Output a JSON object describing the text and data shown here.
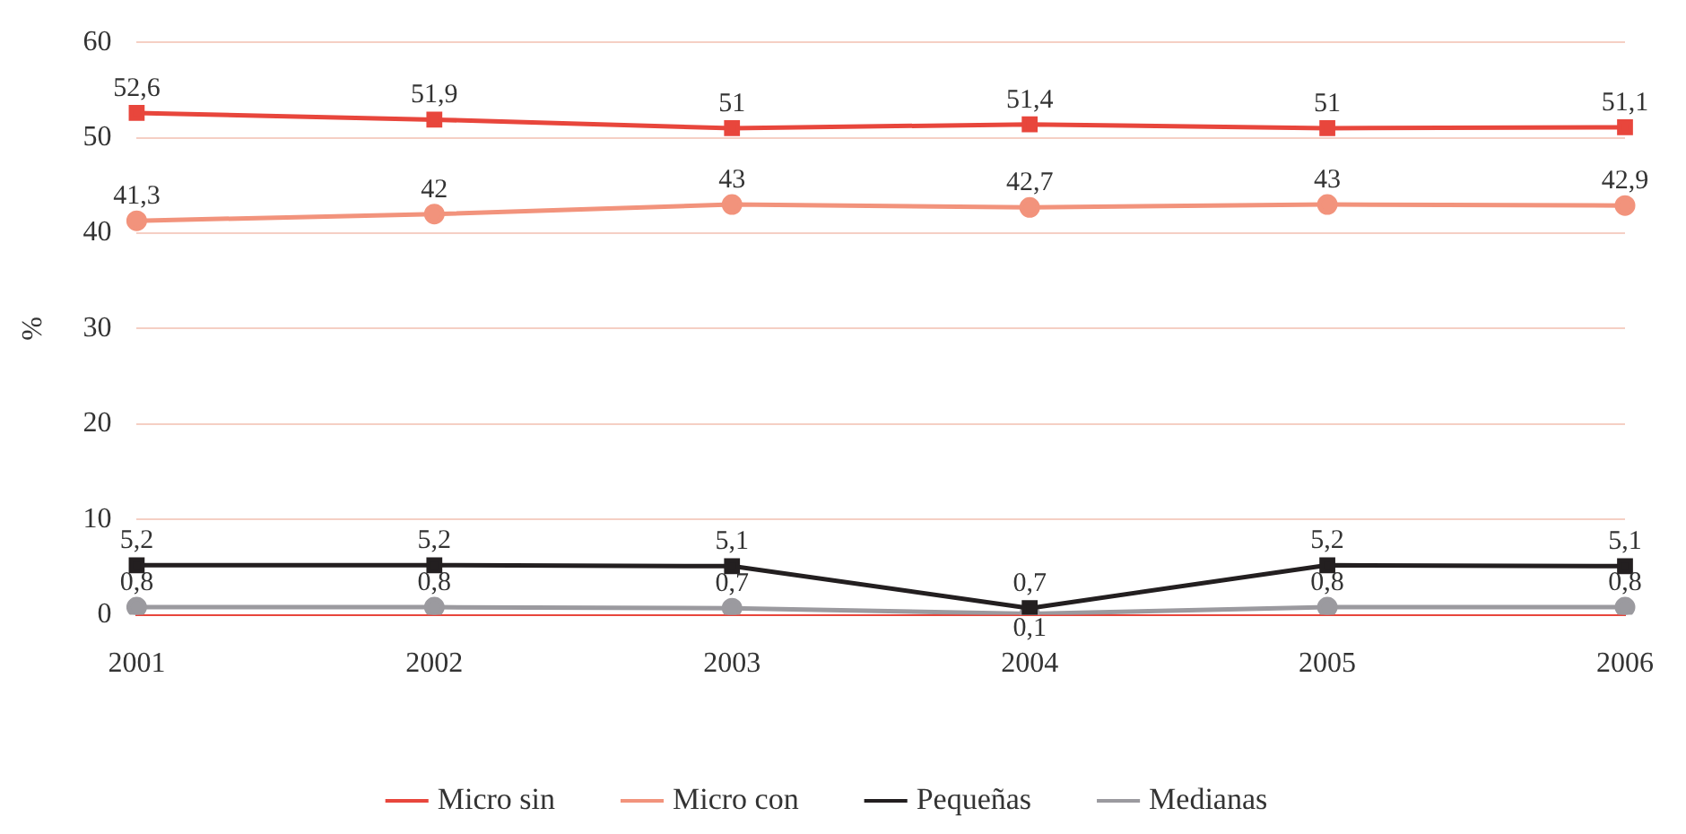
{
  "chart_data": {
    "type": "line",
    "ylabel": "%",
    "categories": [
      "2001",
      "2002",
      "2003",
      "2004",
      "2005",
      "2006"
    ],
    "ylim": [
      0,
      60
    ],
    "yticks": [
      0,
      10,
      20,
      30,
      40,
      50,
      60
    ],
    "grid": "y",
    "legend": "bottom",
    "line_style": "solid",
    "series": [
      {
        "name": "Micro sin",
        "color": "#e8463c",
        "marker": "square",
        "values": [
          52.6,
          51.9,
          51,
          51.4,
          51,
          51.1
        ],
        "value_labels": [
          "52,6",
          "51,9",
          "51",
          "51,4",
          "51",
          "51,1"
        ]
      },
      {
        "name": "Micro con",
        "color": "#f2937c",
        "marker": "circle",
        "values": [
          41.3,
          42,
          43,
          42.7,
          43,
          42.9
        ],
        "value_labels": [
          "41,3",
          "42",
          "43",
          "42,7",
          "43",
          "42,9"
        ]
      },
      {
        "name": "Pequeñas",
        "color": "#231f20",
        "marker": "square",
        "values": [
          5.2,
          5.2,
          5.1,
          0.7,
          5.2,
          5.1
        ],
        "value_labels": [
          "5,2",
          "5,2",
          "5,1",
          "0,7",
          "5,2",
          "5,1"
        ]
      },
      {
        "name": "Medianas",
        "color": "#9b9a9f",
        "marker": "circle",
        "values": [
          0.8,
          0.8,
          0.7,
          0.1,
          0.8,
          0.8
        ],
        "value_labels": [
          "0,8",
          "0,8",
          "0,7",
          "0,1",
          "0,8",
          "0,8"
        ]
      }
    ]
  }
}
